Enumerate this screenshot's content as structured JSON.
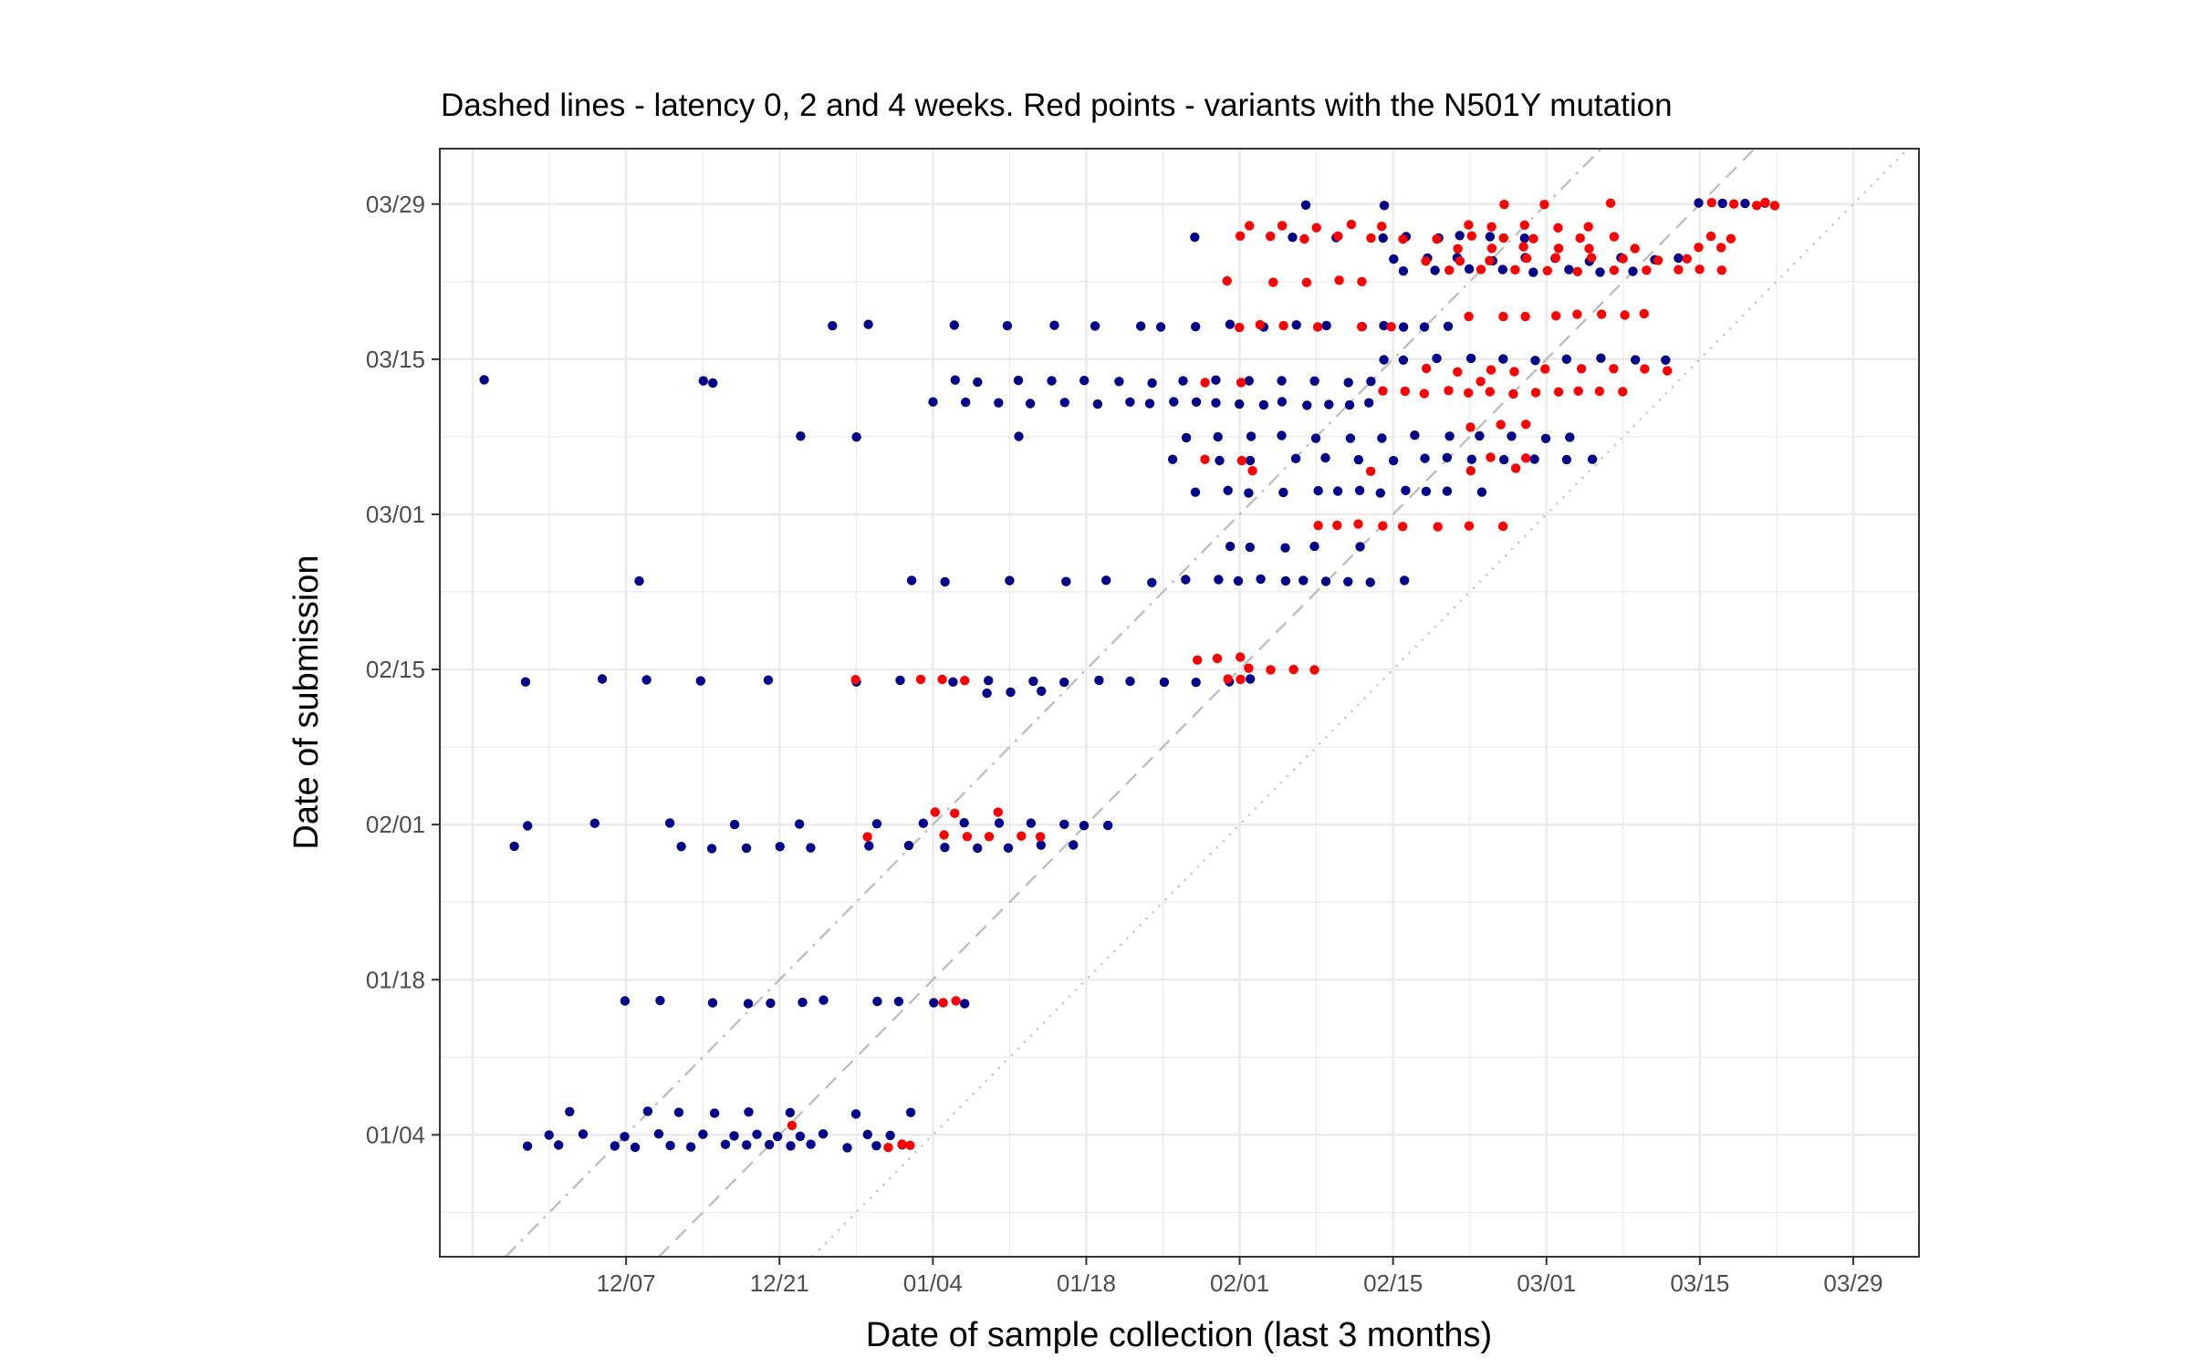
{
  "chart_data": {
    "type": "scatter",
    "title": "Dashed lines - latency 0, 2 and 4 weeks. Red points - variants with the N501Y mutation",
    "xlabel": "Date of sample collection (last 3 months)",
    "ylabel": "Date of submission",
    "x_ticks": [
      "12/07",
      "12/21",
      "01/04",
      "01/18",
      "02/01",
      "02/15",
      "03/01",
      "03/15",
      "03/29"
    ],
    "y_ticks": [
      "01/04",
      "01/18",
      "02/01",
      "02/15",
      "03/01",
      "03/15",
      "03/29"
    ],
    "x_range": [
      "2020-11-20",
      "2021-04-04"
    ],
    "y_range": [
      "2020-12-24",
      "2021-04-03"
    ],
    "grid": true,
    "colors": {
      "other": "#00008b",
      "n501y": "#ff0000",
      "reference": "#bebebe"
    },
    "reference_lines": [
      {
        "latency_weeks": 0,
        "style": "dotted"
      },
      {
        "latency_weeks": 2,
        "style": "dashed"
      },
      {
        "latency_weeks": 4,
        "style": "dashdot"
      }
    ],
    "series": [
      {
        "variant": "other",
        "submission_batches": [
          {
            "submitted": "2021-01-03",
            "collected": [
              "2020-11-28",
              "2020-12-01",
              "2020-12-06",
              "2020-12-08",
              "2020-12-11",
              "2020-12-13",
              "2020-12-16",
              "2020-12-18",
              "2020-12-20",
              "2020-12-22",
              "2020-12-24",
              "2020-12-27",
              "2020-12-30",
              "2021-01-01"
            ]
          },
          {
            "submitted": "2021-01-04",
            "collected": [
              "2020-11-30",
              "2020-12-03",
              "2020-12-07",
              "2020-12-10",
              "2020-12-14",
              "2020-12-17",
              "2020-12-19",
              "2020-12-21",
              "2020-12-23",
              "2020-12-25",
              "2020-12-29",
              "2020-12-31"
            ]
          },
          {
            "submitted": "2021-01-06",
            "collected": [
              "2020-12-02",
              "2020-12-09",
              "2020-12-12",
              "2020-12-15",
              "2020-12-18",
              "2020-12-22",
              "2020-12-28",
              "2021-01-02"
            ]
          },
          {
            "submitted": "2021-01-16",
            "collected": [
              "2020-12-07",
              "2020-12-10",
              "2020-12-15",
              "2020-12-18",
              "2020-12-20",
              "2020-12-23",
              "2020-12-25",
              "2020-12-30",
              "2021-01-01",
              "2021-01-04",
              "2021-01-07"
            ]
          },
          {
            "submitted": "2021-01-30",
            "collected": [
              "2020-11-27",
              "2020-12-12",
              "2020-12-15",
              "2020-12-18",
              "2020-12-21",
              "2020-12-24",
              "2020-12-29",
              "2021-01-02",
              "2021-01-05",
              "2021-01-08",
              "2021-01-11",
              "2021-01-14",
              "2021-01-17"
            ]
          },
          {
            "submitted": "2021-02-01",
            "collected": [
              "2020-11-28",
              "2020-12-04",
              "2020-12-11",
              "2020-12-17",
              "2020-12-23",
              "2020-12-30",
              "2021-01-03",
              "2021-01-07",
              "2021-01-10",
              "2021-01-13",
              "2021-01-16",
              "2021-01-18",
              "2021-01-20"
            ]
          },
          {
            "submitted": "2021-02-13",
            "collected": [
              "2021-01-09",
              "2021-01-11",
              "2021-01-14"
            ]
          },
          {
            "submitted": "2021-02-14",
            "collected": [
              "2020-11-28",
              "2020-12-05",
              "2020-12-09",
              "2020-12-14",
              "2020-12-20",
              "2020-12-28",
              "2021-01-01",
              "2021-01-06",
              "2021-01-09",
              "2021-01-13",
              "2021-01-16",
              "2021-01-19",
              "2021-01-22",
              "2021-01-25",
              "2021-01-28",
              "2021-01-31",
              "2021-02-02"
            ]
          },
          {
            "submitted": "2021-02-23",
            "collected": [
              "2020-12-08",
              "2021-01-02",
              "2021-01-05",
              "2021-01-11",
              "2021-01-16",
              "2021-01-20",
              "2021-01-24",
              "2021-01-27",
              "2021-01-30",
              "2021-02-01",
              "2021-02-03",
              "2021-02-05",
              "2021-02-07",
              "2021-02-09",
              "2021-02-11",
              "2021-02-13",
              "2021-02-16"
            ]
          },
          {
            "submitted": "2021-02-26",
            "collected": [
              "2021-01-31",
              "2021-02-02",
              "2021-02-05",
              "2021-02-08",
              "2021-02-12"
            ]
          },
          {
            "submitted": "2021-03-03",
            "collected": [
              "2021-01-28",
              "2021-01-31",
              "2021-02-02",
              "2021-02-05",
              "2021-02-08",
              "2021-02-10",
              "2021-02-12",
              "2021-02-14",
              "2021-02-16",
              "2021-02-18",
              "2021-02-20",
              "2021-02-23"
            ]
          },
          {
            "submitted": "2021-03-06",
            "collected": [
              "2021-01-26",
              "2021-01-30",
              "2021-02-02",
              "2021-02-06",
              "2021-02-09",
              "2021-02-12",
              "2021-02-15",
              "2021-02-18",
              "2021-02-20",
              "2021-02-22",
              "2021-02-25",
              "2021-02-28",
              "2021-03-03",
              "2021-03-05"
            ]
          },
          {
            "submitted": "2021-03-08",
            "collected": [
              "2020-12-23",
              "2020-12-28",
              "2021-01-12",
              "2021-01-27",
              "2021-01-30",
              "2021-02-02",
              "2021-02-05",
              "2021-02-08",
              "2021-02-11",
              "2021-02-14",
              "2021-02-17",
              "2021-02-20",
              "2021-02-23",
              "2021-02-26",
              "2021-03-01",
              "2021-03-03"
            ]
          },
          {
            "submitted": "2021-03-11",
            "collected": [
              "2021-01-04",
              "2021-01-07",
              "2021-01-10",
              "2021-01-13",
              "2021-01-16",
              "2021-01-19",
              "2021-01-22",
              "2021-01-24",
              "2021-01-26",
              "2021-01-28",
              "2021-01-30",
              "2021-02-01",
              "2021-02-03",
              "2021-02-05",
              "2021-02-07",
              "2021-02-09",
              "2021-02-11",
              "2021-02-13"
            ]
          },
          {
            "submitted": "2021-03-13",
            "collected": [
              "2020-11-24",
              "2020-12-14",
              "2020-12-15",
              "2021-01-06",
              "2021-01-08",
              "2021-01-12",
              "2021-01-15",
              "2021-01-18",
              "2021-01-21",
              "2021-01-24",
              "2021-01-27",
              "2021-01-30",
              "2021-02-02",
              "2021-02-05",
              "2021-02-08",
              "2021-02-11",
              "2021-02-13"
            ]
          },
          {
            "submitted": "2021-03-15",
            "collected": [
              "2021-02-14",
              "2021-02-16",
              "2021-02-19",
              "2021-02-22",
              "2021-02-25",
              "2021-02-28",
              "2021-03-03",
              "2021-03-06",
              "2021-03-09",
              "2021-03-12"
            ]
          },
          {
            "submitted": "2021-03-18",
            "collected": [
              "2020-12-26",
              "2020-12-29",
              "2021-01-06",
              "2021-01-11",
              "2021-01-15",
              "2021-01-19",
              "2021-01-23",
              "2021-01-25",
              "2021-01-28",
              "2021-01-31",
              "2021-02-03",
              "2021-02-06",
              "2021-02-09",
              "2021-02-12",
              "2021-02-14",
              "2021-02-16",
              "2021-02-18",
              "2021-02-20"
            ]
          },
          {
            "submitted": "2021-03-23",
            "collected": [
              "2021-02-16",
              "2021-02-19",
              "2021-02-22",
              "2021-02-25",
              "2021-02-28",
              "2021-03-03",
              "2021-03-06",
              "2021-03-09"
            ]
          },
          {
            "submitted": "2021-03-24",
            "collected": [
              "2021-02-15",
              "2021-02-18",
              "2021-02-21",
              "2021-02-24",
              "2021-02-27",
              "2021-03-02",
              "2021-03-05",
              "2021-03-08",
              "2021-03-11",
              "2021-03-13"
            ]
          },
          {
            "submitted": "2021-03-26",
            "collected": [
              "2021-01-28",
              "2021-02-06",
              "2021-02-10",
              "2021-02-14",
              "2021-02-16",
              "2021-02-19",
              "2021-02-21",
              "2021-02-24",
              "2021-02-27"
            ]
          },
          {
            "submitted": "2021-03-29",
            "collected": [
              "2021-02-07",
              "2021-02-14",
              "2021-03-15",
              "2021-03-17",
              "2021-03-19",
              "2021-03-21"
            ]
          }
        ]
      },
      {
        "variant": "N501Y",
        "submission_batches": [
          {
            "submitted": "2021-01-03",
            "collected": [
              "2020-12-31",
              "2021-01-01",
              "2021-01-02"
            ]
          },
          {
            "submitted": "2021-01-05",
            "collected": [
              "2020-12-22"
            ]
          },
          {
            "submitted": "2021-01-16",
            "collected": [
              "2021-01-06",
              "2021-01-05"
            ]
          },
          {
            "submitted": "2021-01-31",
            "collected": [
              "2020-12-29",
              "2021-01-05",
              "2021-01-07",
              "2021-01-09",
              "2021-01-12",
              "2021-01-14"
            ]
          },
          {
            "submitted": "2021-02-02",
            "collected": [
              "2021-01-04",
              "2021-01-06",
              "2021-01-10"
            ]
          },
          {
            "submitted": "2021-02-14",
            "collected": [
              "2020-12-28",
              "2021-01-03",
              "2021-01-05",
              "2021-01-07",
              "2021-01-31",
              "2021-02-01"
            ]
          },
          {
            "submitted": "2021-02-15",
            "collected": [
              "2021-02-02",
              "2021-02-04",
              "2021-02-06",
              "2021-02-08"
            ]
          },
          {
            "submitted": "2021-02-16",
            "collected": [
              "2021-01-28",
              "2021-01-30",
              "2021-02-01"
            ]
          },
          {
            "submitted": "2021-02-28",
            "collected": [
              "2021-02-08",
              "2021-02-10",
              "2021-02-12",
              "2021-02-14",
              "2021-02-16",
              "2021-02-19",
              "2021-02-22",
              "2021-02-25"
            ]
          },
          {
            "submitted": "2021-03-05",
            "collected": [
              "2021-02-02",
              "2021-02-13",
              "2021-02-22",
              "2021-02-26"
            ]
          },
          {
            "submitted": "2021-03-06",
            "collected": [
              "2021-01-29",
              "2021-02-01",
              "2021-02-24",
              "2021-02-27"
            ]
          },
          {
            "submitted": "2021-03-09",
            "collected": [
              "2021-02-22",
              "2021-02-25",
              "2021-02-27"
            ]
          },
          {
            "submitted": "2021-03-13",
            "collected": [
              "2021-01-29",
              "2021-02-01",
              "2021-02-23"
            ]
          },
          {
            "submitted": "2021-03-12",
            "collected": [
              "2021-02-14",
              "2021-02-16",
              "2021-02-18",
              "2021-02-20",
              "2021-02-22",
              "2021-02-24",
              "2021-02-26",
              "2021-02-28",
              "2021-03-02",
              "2021-03-04",
              "2021-03-06",
              "2021-03-08"
            ]
          },
          {
            "submitted": "2021-03-14",
            "collected": [
              "2021-02-18",
              "2021-02-21",
              "2021-02-24",
              "2021-02-26",
              "2021-03-01",
              "2021-03-04",
              "2021-03-07",
              "2021-03-10",
              "2021-03-12"
            ]
          },
          {
            "submitted": "2021-03-18",
            "collected": [
              "2021-02-01",
              "2021-02-03",
              "2021-02-05",
              "2021-02-08",
              "2021-02-12",
              "2021-02-15"
            ]
          },
          {
            "submitted": "2021-03-19",
            "collected": [
              "2021-02-22",
              "2021-02-25",
              "2021-02-27",
              "2021-03-02",
              "2021-03-04",
              "2021-03-06",
              "2021-03-08",
              "2021-03-10"
            ]
          },
          {
            "submitted": "2021-03-22",
            "collected": [
              "2021-01-31",
              "2021-02-04",
              "2021-02-07",
              "2021-02-10",
              "2021-02-12"
            ]
          },
          {
            "submitted": "2021-03-23",
            "collected": [
              "2021-02-20",
              "2021-02-23",
              "2021-02-26",
              "2021-03-01",
              "2021-03-04",
              "2021-03-07",
              "2021-03-10",
              "2021-03-13",
              "2021-03-15",
              "2021-03-17"
            ]
          },
          {
            "submitted": "2021-03-24",
            "collected": [
              "2021-02-18",
              "2021-02-21",
              "2021-02-24",
              "2021-02-27",
              "2021-03-02",
              "2021-03-05",
              "2021-03-08",
              "2021-03-11",
              "2021-03-14"
            ]
          },
          {
            "submitted": "2021-03-25",
            "collected": [
              "2021-02-21",
              "2021-02-24",
              "2021-02-27",
              "2021-03-02",
              "2021-03-05",
              "2021-03-09",
              "2021-03-15",
              "2021-03-17"
            ]
          },
          {
            "submitted": "2021-03-26",
            "collected": [
              "2021-02-01",
              "2021-02-04",
              "2021-02-07",
              "2021-02-10",
              "2021-02-13",
              "2021-02-16",
              "2021-02-19",
              "2021-02-22",
              "2021-02-25",
              "2021-02-28",
              "2021-03-04",
              "2021-03-07",
              "2021-03-16",
              "2021-03-18"
            ]
          },
          {
            "submitted": "2021-03-27",
            "collected": [
              "2021-02-02",
              "2021-02-05",
              "2021-02-08",
              "2021-02-11",
              "2021-02-14",
              "2021-02-22",
              "2021-02-24",
              "2021-02-27",
              "2021-03-02",
              "2021-03-05"
            ]
          },
          {
            "submitted": "2021-03-29",
            "collected": [
              "2021-02-25",
              "2021-03-01",
              "2021-03-07",
              "2021-03-16",
              "2021-03-18",
              "2021-03-20",
              "2021-03-21",
              "2021-03-22"
            ]
          }
        ]
      }
    ]
  }
}
